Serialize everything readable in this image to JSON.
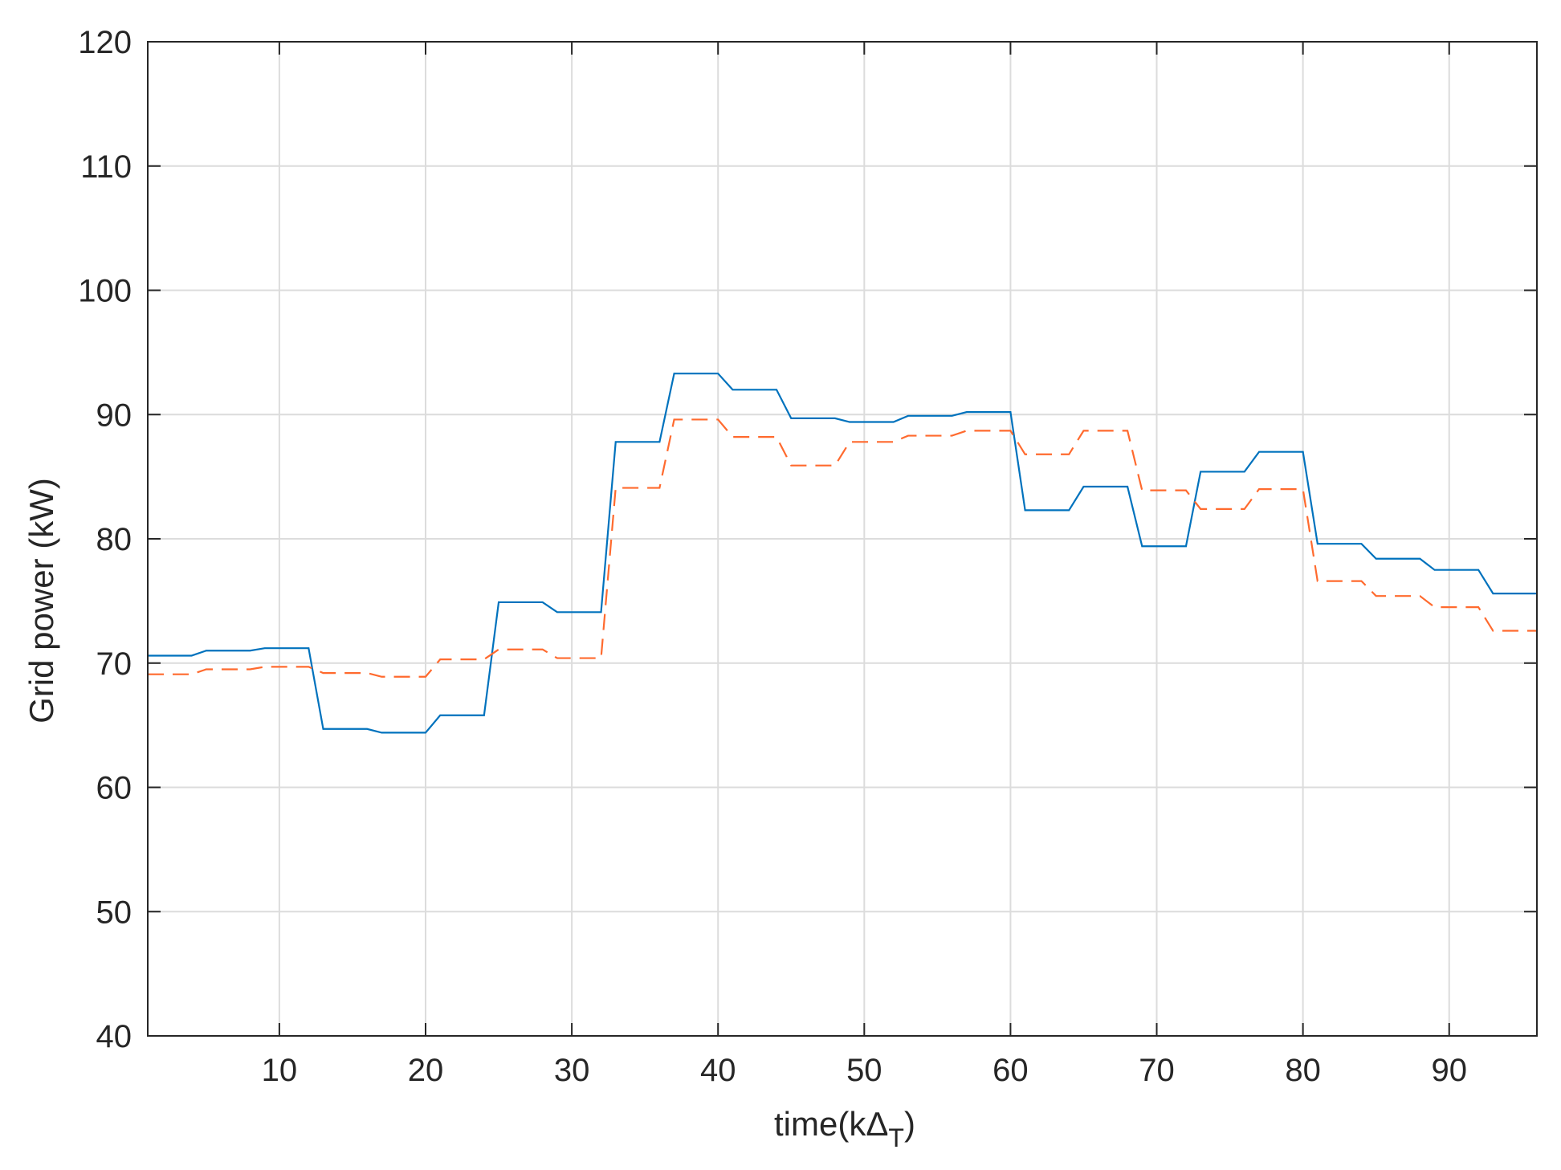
{
  "chart_data": {
    "type": "line",
    "xlabel": "time(k",
    "xlabel_symbol": "Δ",
    "xlabel_subscript": "T",
    "xlabel_close": ")",
    "ylabel": "Grid power (kW)",
    "xlim": [
      1,
      96
    ],
    "ylim": [
      40,
      120
    ],
    "x_ticks": [
      10,
      20,
      30,
      40,
      50,
      60,
      70,
      80,
      90
    ],
    "y_ticks": [
      40,
      50,
      60,
      70,
      80,
      90,
      100,
      110,
      120
    ],
    "grid": true,
    "x": [
      1,
      2,
      3,
      4,
      5,
      6,
      7,
      8,
      9,
      10,
      11,
      12,
      13,
      14,
      15,
      16,
      17,
      18,
      19,
      20,
      21,
      22,
      23,
      24,
      25,
      26,
      27,
      28,
      29,
      30,
      31,
      32,
      33,
      34,
      35,
      36,
      37,
      38,
      39,
      40,
      41,
      42,
      43,
      44,
      45,
      46,
      47,
      48,
      49,
      50,
      51,
      52,
      53,
      54,
      55,
      56,
      57,
      58,
      59,
      60,
      61,
      62,
      63,
      64,
      65,
      66,
      67,
      68,
      69,
      70,
      71,
      72,
      73,
      74,
      75,
      76,
      77,
      78,
      79,
      80,
      81,
      82,
      83,
      84,
      85,
      86,
      87,
      88,
      89,
      90,
      91,
      92,
      93,
      94,
      95,
      96
    ],
    "series": [
      {
        "color": "#0072bd",
        "style": "solid",
        "values": [
          70.6,
          70.6,
          70.6,
          70.6,
          71.0,
          71.0,
          71.0,
          71.0,
          71.2,
          71.2,
          71.2,
          71.2,
          64.7,
          64.7,
          64.7,
          64.7,
          64.4,
          64.4,
          64.4,
          64.4,
          65.8,
          65.8,
          65.8,
          65.8,
          74.9,
          74.9,
          74.9,
          74.9,
          74.1,
          74.1,
          74.1,
          74.1,
          87.8,
          87.8,
          87.8,
          87.8,
          93.3,
          93.3,
          93.3,
          93.3,
          92.0,
          92.0,
          92.0,
          92.0,
          89.7,
          89.7,
          89.7,
          89.7,
          89.4,
          89.4,
          89.4,
          89.4,
          89.9,
          89.9,
          89.9,
          89.9,
          90.2,
          90.2,
          90.2,
          90.2,
          82.3,
          82.3,
          82.3,
          82.3,
          84.2,
          84.2,
          84.2,
          84.2,
          79.4,
          79.4,
          79.4,
          79.4,
          85.4,
          85.4,
          85.4,
          85.4,
          87.0,
          87.0,
          87.0,
          87.0,
          79.6,
          79.6,
          79.6,
          79.6,
          78.4,
          78.4,
          78.4,
          78.4,
          77.5,
          77.5,
          77.5,
          77.5,
          75.6,
          75.6,
          75.6,
          75.6
        ]
      },
      {
        "color": "#ff6a2e",
        "style": "dashed",
        "values": [
          69.1,
          69.1,
          69.1,
          69.1,
          69.5,
          69.5,
          69.5,
          69.5,
          69.7,
          69.7,
          69.7,
          69.7,
          69.2,
          69.2,
          69.2,
          69.2,
          68.9,
          68.9,
          68.9,
          68.9,
          70.3,
          70.3,
          70.3,
          70.3,
          71.1,
          71.1,
          71.1,
          71.1,
          70.4,
          70.4,
          70.4,
          70.4,
          84.1,
          84.1,
          84.1,
          84.1,
          89.6,
          89.6,
          89.6,
          89.6,
          88.2,
          88.2,
          88.2,
          88.2,
          85.9,
          85.9,
          85.9,
          85.9,
          87.8,
          87.8,
          87.8,
          87.8,
          88.3,
          88.3,
          88.3,
          88.3,
          88.7,
          88.7,
          88.7,
          88.7,
          86.8,
          86.8,
          86.8,
          86.8,
          88.7,
          88.7,
          88.7,
          88.7,
          83.9,
          83.9,
          83.9,
          83.9,
          82.4,
          82.4,
          82.4,
          82.4,
          84.0,
          84.0,
          84.0,
          84.0,
          76.6,
          76.6,
          76.6,
          76.6,
          75.4,
          75.4,
          75.4,
          75.4,
          74.5,
          74.5,
          74.5,
          74.5,
          72.6,
          72.6,
          72.6,
          72.6
        ]
      }
    ]
  }
}
